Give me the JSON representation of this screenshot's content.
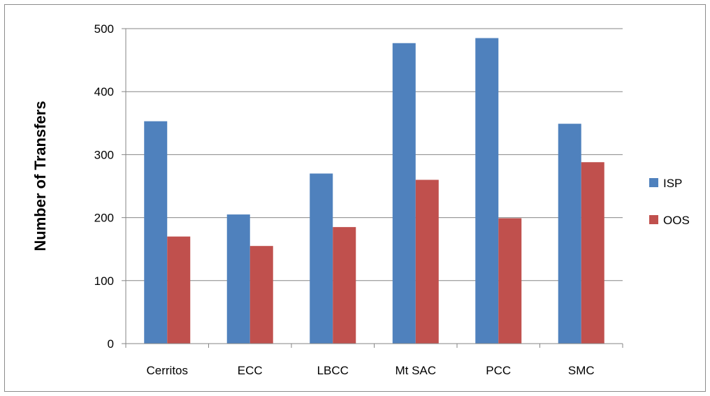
{
  "chart_data": {
    "type": "bar",
    "title": "",
    "xlabel": "",
    "ylabel": "Number of Transfers",
    "categories": [
      "Cerritos",
      "ECC",
      "LBCC",
      "Mt SAC",
      "PCC",
      "SMC"
    ],
    "series": [
      {
        "name": "ISP",
        "color": "#4f81bd",
        "values": [
          353,
          205,
          270,
          477,
          485,
          349
        ]
      },
      {
        "name": "OOS",
        "color": "#c0504d",
        "values": [
          170,
          155,
          185,
          260,
          199,
          288
        ]
      }
    ],
    "ylim": [
      0,
      500
    ],
    "yticks": [
      0,
      100,
      200,
      300,
      400,
      500
    ],
    "grid": true,
    "legend_position": "right"
  }
}
